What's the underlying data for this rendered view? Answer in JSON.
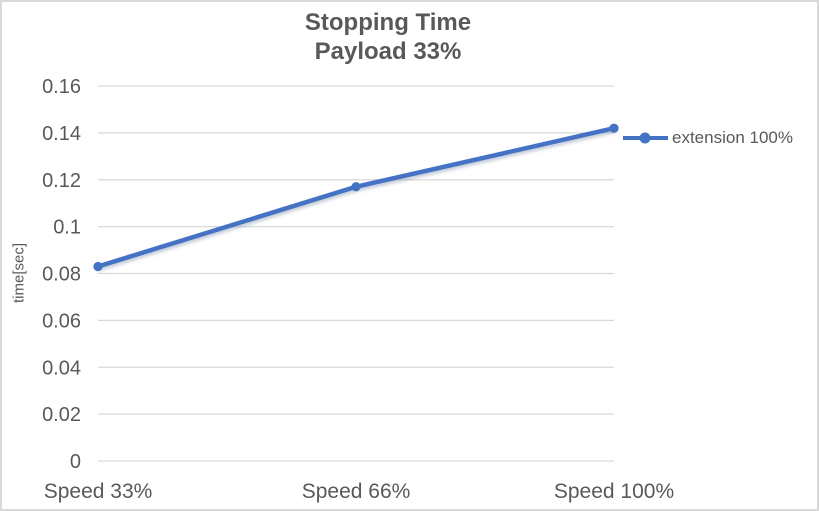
{
  "window": {
    "background_color": "#ffffff",
    "border_color": "#d9d9d9"
  },
  "chart_data": {
    "type": "line",
    "title_line1": "Stopping Time",
    "title_line2": "Payload 33%",
    "ylabel": "time[sec]",
    "xlabel": "",
    "categories": [
      "Speed 33%",
      "Speed 66%",
      "Speed 100%"
    ],
    "series": [
      {
        "name": "extension 100%",
        "values": [
          0.083,
          0.117,
          0.142
        ],
        "color": "#4472c4"
      }
    ],
    "ylim": [
      0,
      0.16
    ],
    "ytick_step": 0.02,
    "ytick_labels": [
      "0",
      "0.02",
      "0.04",
      "0.06",
      "0.08",
      "0.1",
      "0.12",
      "0.14",
      "0.16"
    ],
    "grid": true,
    "gridline_color": "#d9d9d9",
    "text_color": "#595959",
    "legend_position": "right"
  }
}
